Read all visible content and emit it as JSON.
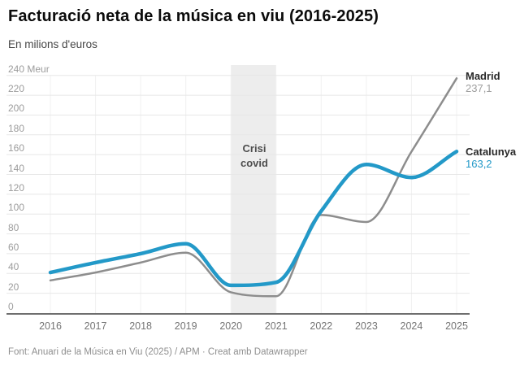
{
  "header": {
    "title": "Facturació neta de la música en viu (2016-2025)",
    "subtitle": "En milions d'euros"
  },
  "annotation": {
    "line1": "Crisi",
    "line2": "covid"
  },
  "series_labels": {
    "madrid": {
      "name": "Madrid",
      "value": "237,1"
    },
    "catalunya": {
      "name": "Catalunya",
      "value": "163,2"
    }
  },
  "footer": {
    "text": "Font: Anuari de la Música en Viu (2025) / APM · Creat amb Datawrapper"
  },
  "chart_data": {
    "type": "line",
    "title": "Facturació neta de la música en viu (2016-2025)",
    "subtitle": "En milions d'euros",
    "x": [
      2016,
      2017,
      2018,
      2019,
      2020,
      2021,
      2022,
      2023,
      2024,
      2025
    ],
    "series": [
      {
        "name": "Madrid",
        "color": "#8d8d8d",
        "width": 2.5,
        "values": [
          33,
          41,
          51,
          61,
          21,
          17,
          99,
          92,
          163,
          237.1
        ],
        "final_label": "237,1"
      },
      {
        "name": "Catalunya",
        "color": "#2399c8",
        "width": 4.5,
        "values": [
          41,
          51,
          60,
          70,
          28,
          31,
          103,
          150,
          137,
          163.2
        ],
        "final_label": "163,2"
      }
    ],
    "ylim": [
      0,
      240
    ],
    "y_ticks": [
      0,
      20,
      40,
      60,
      80,
      100,
      120,
      140,
      160,
      180,
      200,
      220,
      240
    ],
    "y_unit": "Meur",
    "x_tick_labels": [
      "2016",
      "2017",
      "2018",
      "2019",
      "2020",
      "2021",
      "2022",
      "2023",
      "2024",
      "2025"
    ],
    "grid": "horizontal",
    "legend_position": "right-of-line-end",
    "band": {
      "from": 2020,
      "to": 2021,
      "label": "Crisi covid",
      "color": "#ededed"
    }
  }
}
